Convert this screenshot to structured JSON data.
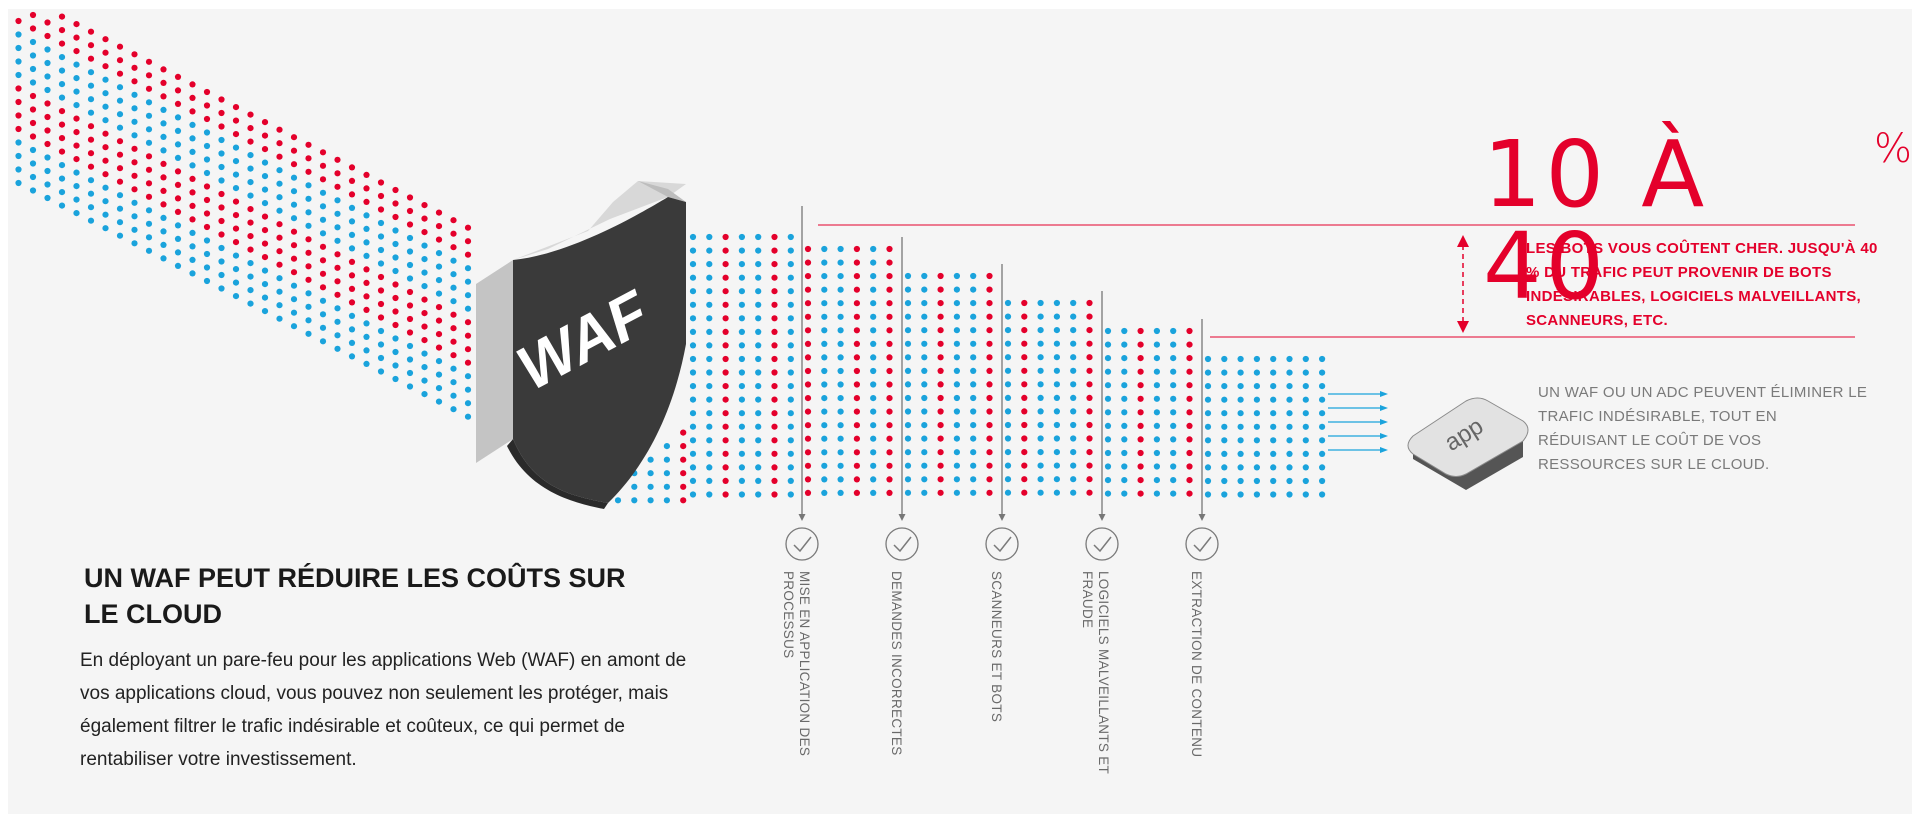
{
  "stat": {
    "value": "10 À 40",
    "unit": "%"
  },
  "bots_note": "LES BOTS VOUS COÛTENT CHER. JUSQU'À 40 % DU TRAFIC PEUT PROVENIR DE BOTS INDÉSIRABLES, LOGICIELS MALVEILLANTS, SCANNEURS, ETC.",
  "adc_note": "UN WAF OU UN ADC PEUVENT ÉLIMINER LE TRAFIC INDÉSIRABLE, TOUT EN RÉDUISANT LE COÛT DE VOS RESSOURCES SUR LE CLOUD.",
  "shield_label": "WAF",
  "app_label": "app",
  "filters": [
    {
      "label": "MISE EN APPLICATION DES PROCESSUS"
    },
    {
      "label": "DEMANDES INCORRECTES"
    },
    {
      "label": "SCANNEURS ET BOTS"
    },
    {
      "label": "LOGICIELS MALVEILLANTS ET FRAUDE"
    },
    {
      "label": "EXTRACTION DE CONTENU"
    }
  ],
  "heading": "UN WAF PEUT RÉDUIRE LES COÛTS SUR LE CLOUD",
  "description": "En déployant un pare-feu pour les applications Web (WAF) en amont de vos applications cloud, vous pouvez non seulement les protéger, mais également filtrer le trafic indésirable et coûteux, ce qui permet de rentabiliser votre investissement.",
  "colors": {
    "red": "#e4002b",
    "blue": "#1aa3dc",
    "shield": "#3a3a3a",
    "bg": "#f5f5f5"
  }
}
